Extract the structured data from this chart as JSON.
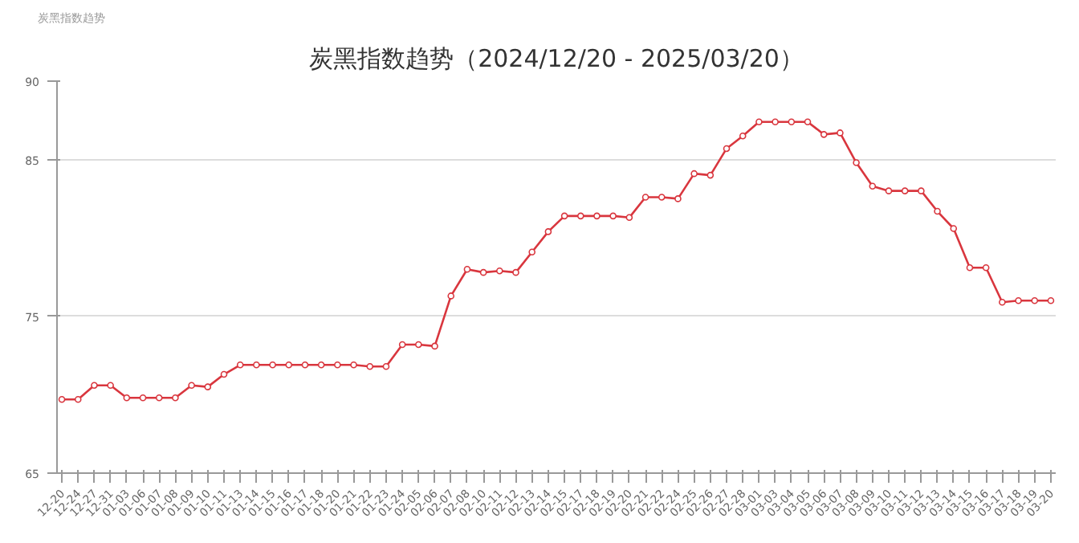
{
  "chart_data": {
    "type": "line",
    "title": "炭黑指数趋势（2024/12/20 - 2025/03/20）",
    "ylabel": "炭黑指数趋势",
    "categories": [
      "12-20",
      "12-24",
      "12-27",
      "12-31",
      "01-03",
      "01-06",
      "01-07",
      "01-08",
      "01-09",
      "01-10",
      "01-11",
      "01-13",
      "01-14",
      "01-15",
      "01-16",
      "01-17",
      "01-18",
      "01-20",
      "01-21",
      "01-22",
      "01-23",
      "01-24",
      "02-05",
      "02-06",
      "02-07",
      "02-08",
      "02-10",
      "02-11",
      "02-12",
      "02-13",
      "02-14",
      "02-15",
      "02-17",
      "02-18",
      "02-19",
      "02-20",
      "02-21",
      "02-22",
      "02-24",
      "02-25",
      "02-26",
      "02-27",
      "02-28",
      "03-01",
      "03-03",
      "03-04",
      "03-05",
      "03-06",
      "03-07",
      "03-08",
      "03-09",
      "03-10",
      "03-11",
      "03-12",
      "03-13",
      "03-14",
      "03-15",
      "03-16",
      "03-17",
      "03-18",
      "03-19",
      "03-20"
    ],
    "series": [
      {
        "color": "#d9363e",
        "values": [
          69.7,
          69.7,
          70.6,
          70.6,
          69.8,
          69.8,
          69.8,
          69.8,
          70.6,
          70.5,
          71.3,
          71.9,
          71.9,
          71.9,
          71.9,
          71.9,
          71.9,
          71.9,
          71.9,
          71.8,
          71.8,
          73.2,
          73.2,
          73.1,
          76.3,
          78.0,
          77.8,
          77.9,
          77.8,
          79.1,
          80.4,
          81.4,
          81.4,
          81.4,
          81.4,
          81.3,
          82.6,
          82.6,
          82.5,
          84.1,
          84.0,
          85.7,
          86.5,
          87.4,
          87.4,
          87.4,
          87.4,
          86.6,
          86.7,
          84.8,
          83.3,
          83.0,
          83.0,
          83.0,
          81.7,
          80.6,
          78.1,
          78.1,
          75.9,
          76.0,
          76.0,
          76.0
        ]
      }
    ],
    "ylim": [
      65,
      90
    ],
    "yticks": [
      65,
      75,
      85,
      90
    ],
    "grid": "y",
    "marker": "circle",
    "line_style": "solid"
  }
}
